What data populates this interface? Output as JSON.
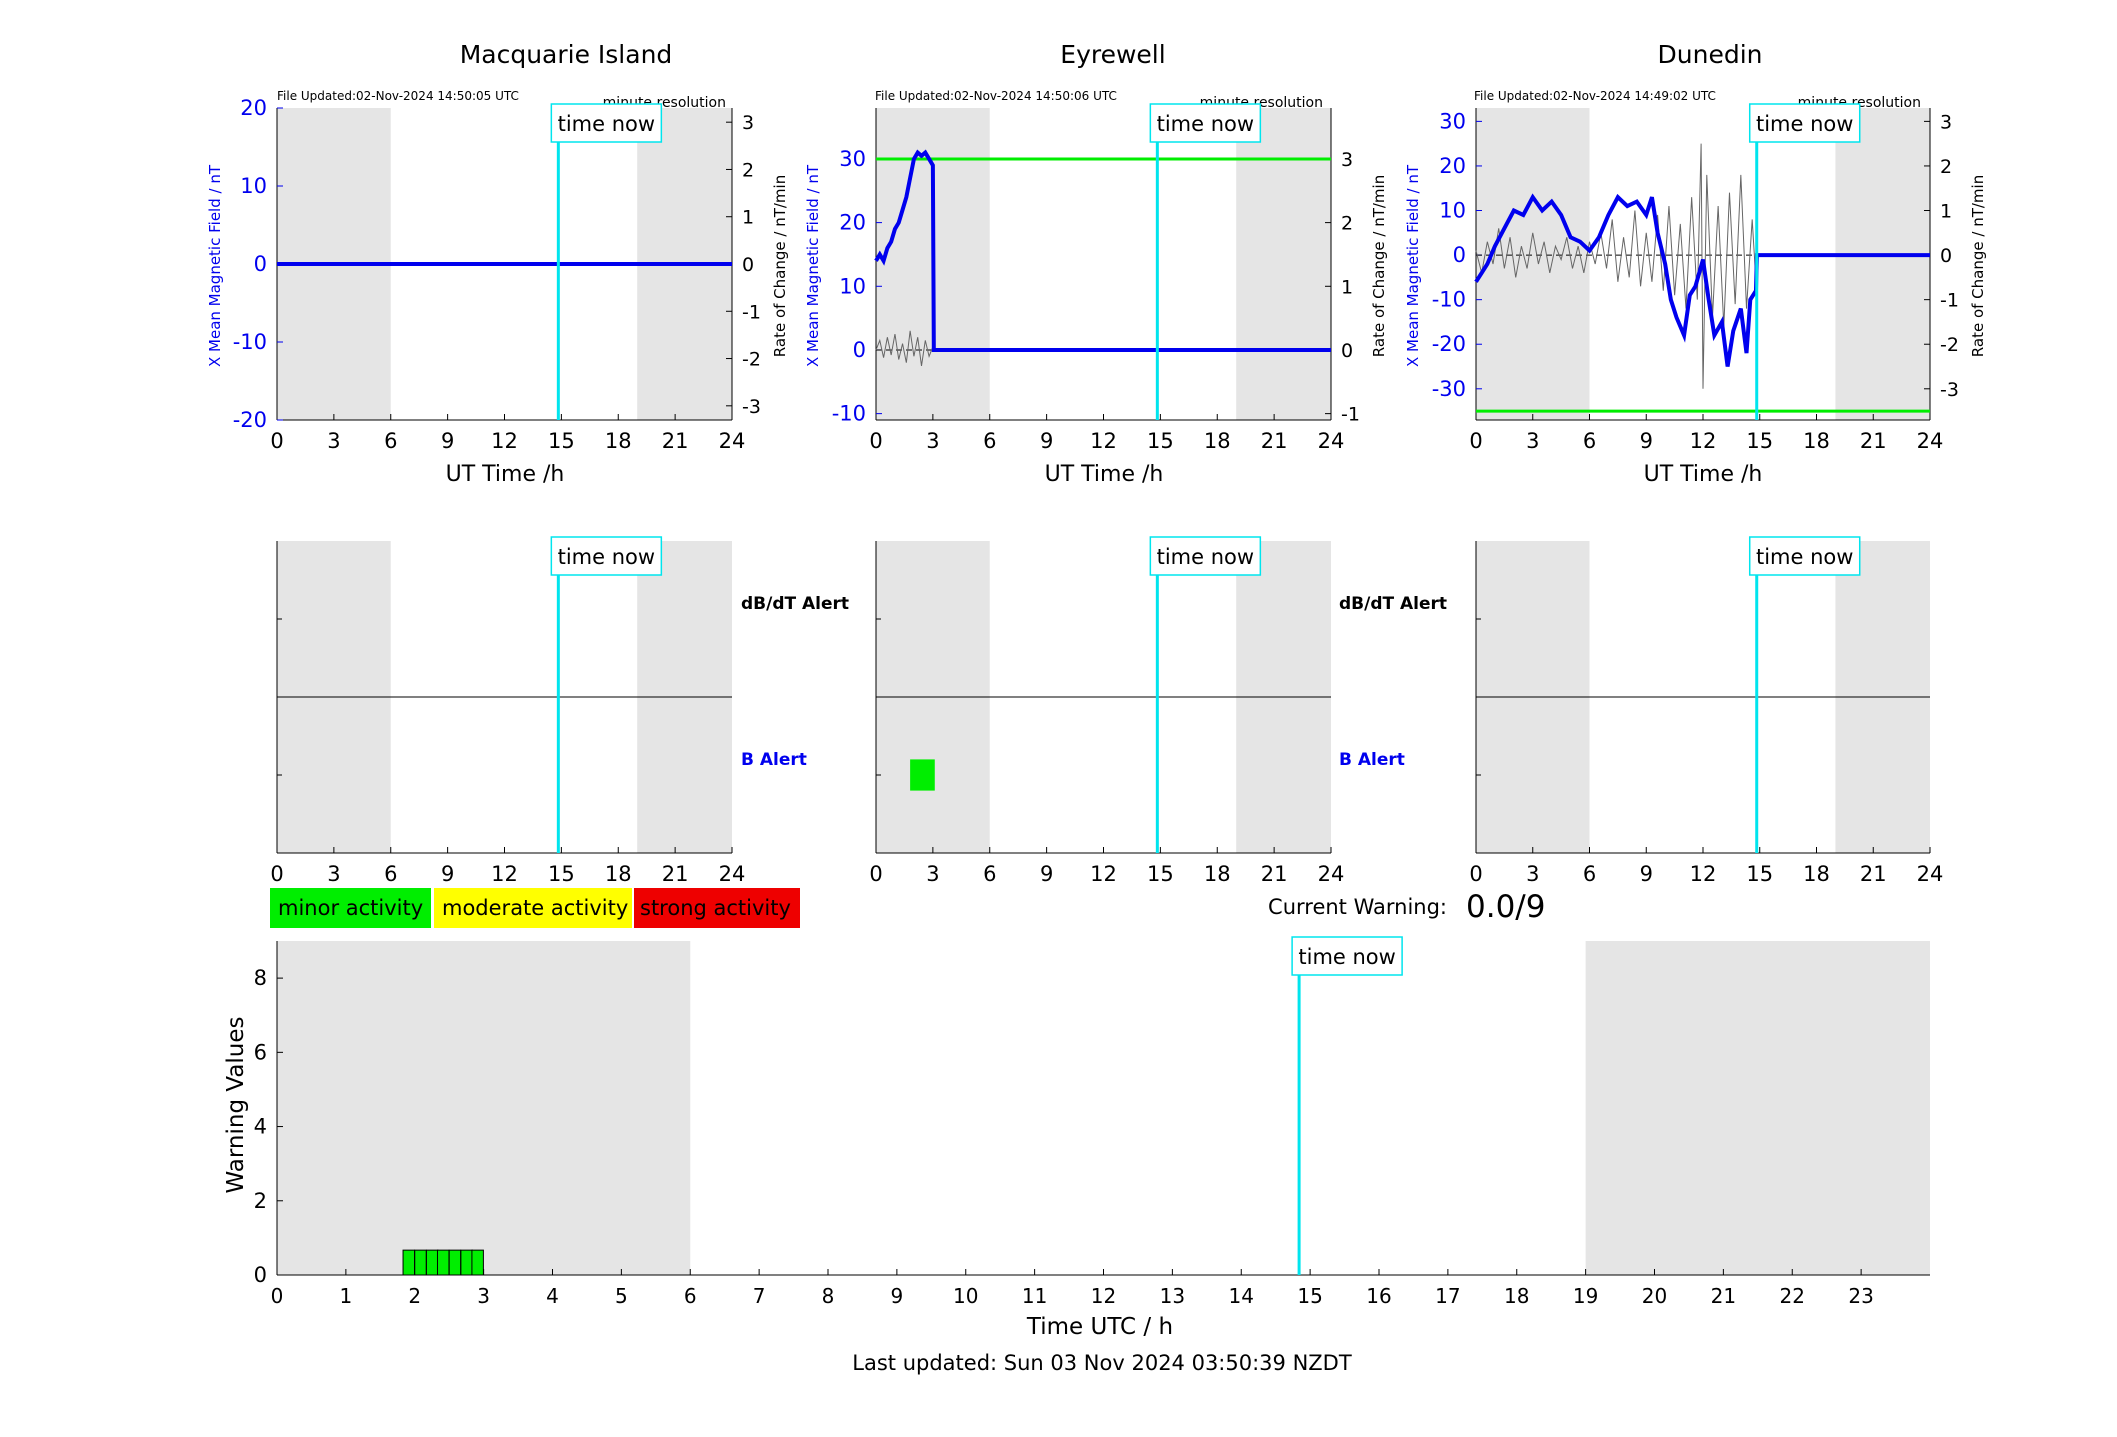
{
  "colors": {
    "field": "#0000ee",
    "rate": "#000000",
    "threshold": "#00ee00",
    "time_now": "#00e5ee",
    "night": "#e5e5e5",
    "minor": "#00ee00",
    "moderate": "#ffff00",
    "strong": "#ee0000"
  },
  "time_now_label": "time now",
  "chart_data": [
    {
      "type": "line",
      "station": "Macquarie Island",
      "updated": "File Updated:02-Nov-2024 14:50:05 UTC",
      "resolution": "minute resolution",
      "xlabel": "UT Time /h",
      "ylabel": "X Mean Magnetic Field / nT",
      "ylabel_right": "Rate of Change / nT/min",
      "xlim": [
        0,
        24
      ],
      "xticks": [
        0,
        3,
        6,
        9,
        12,
        15,
        18,
        21,
        24
      ],
      "ylim": [
        -20,
        20
      ],
      "yticks": [
        -20,
        -10,
        0,
        10,
        20
      ],
      "y2lim": [
        -3.3,
        3.3
      ],
      "y2ticks": [
        -3,
        -2,
        -1,
        0,
        1,
        2,
        3
      ],
      "night": [
        [
          0,
          6
        ],
        [
          19,
          24
        ]
      ],
      "time_now": 14.84,
      "threshold": null,
      "field": [
        [
          0,
          0
        ],
        [
          24,
          0
        ]
      ],
      "rate": []
    },
    {
      "type": "line",
      "station": "Eyrewell",
      "updated": "File Updated:02-Nov-2024 14:50:06 UTC",
      "resolution": "minute resolution",
      "xlabel": "UT Time /h",
      "ylabel": "X Mean Magnetic Field / nT",
      "ylabel_right": "Rate of Change / nT/min",
      "xlim": [
        0,
        24
      ],
      "xticks": [
        0,
        3,
        6,
        9,
        12,
        15,
        18,
        21,
        24
      ],
      "ylim": [
        -11,
        38
      ],
      "yticks": [
        -10,
        0,
        10,
        20,
        30
      ],
      "y2lim": [
        -1.1,
        3.8
      ],
      "y2ticks": [
        -1,
        0,
        1,
        2,
        3
      ],
      "night": [
        [
          0,
          6
        ],
        [
          19,
          24
        ]
      ],
      "time_now": 14.84,
      "threshold": 30,
      "field": [
        [
          0,
          14
        ],
        [
          0.2,
          15
        ],
        [
          0.4,
          14
        ],
        [
          0.6,
          16
        ],
        [
          0.8,
          17
        ],
        [
          1.0,
          19
        ],
        [
          1.2,
          20
        ],
        [
          1.4,
          22
        ],
        [
          1.6,
          24
        ],
        [
          1.8,
          27
        ],
        [
          2.0,
          30
        ],
        [
          2.2,
          31
        ],
        [
          2.4,
          30.5
        ],
        [
          2.6,
          31
        ],
        [
          2.8,
          30
        ],
        [
          3.0,
          29
        ],
        [
          3.05,
          0
        ],
        [
          24,
          0
        ]
      ],
      "rate": [
        [
          0,
          0.0
        ],
        [
          0.2,
          0.15
        ],
        [
          0.4,
          -0.12
        ],
        [
          0.6,
          0.2
        ],
        [
          0.8,
          -0.08
        ],
        [
          1.0,
          0.25
        ],
        [
          1.2,
          -0.15
        ],
        [
          1.4,
          0.1
        ],
        [
          1.6,
          -0.2
        ],
        [
          1.8,
          0.3
        ],
        [
          2.0,
          -0.1
        ],
        [
          2.2,
          0.2
        ],
        [
          2.4,
          -0.25
        ],
        [
          2.6,
          0.15
        ],
        [
          2.8,
          -0.1
        ],
        [
          3.0,
          0.05
        ]
      ]
    },
    {
      "type": "line",
      "station": "Dunedin",
      "updated": "File Updated:02-Nov-2024 14:49:02 UTC",
      "resolution": "minute resolution",
      "xlabel": "UT Time /h",
      "ylabel": "X Mean Magnetic Field / nT",
      "ylabel_right": "Rate of Change / nT/min",
      "xlim": [
        0,
        24
      ],
      "xticks": [
        0,
        3,
        6,
        9,
        12,
        15,
        18,
        21,
        24
      ],
      "ylim": [
        -37,
        33
      ],
      "yticks": [
        -30,
        -20,
        -10,
        0,
        10,
        20,
        30
      ],
      "y2lim": [
        -3.7,
        3.3
      ],
      "y2ticks": [
        -3,
        -2,
        -1,
        0,
        1,
        2,
        3
      ],
      "night": [
        [
          0,
          6
        ],
        [
          19,
          24
        ]
      ],
      "time_now": 14.84,
      "threshold": -35,
      "field": [
        [
          0,
          -6
        ],
        [
          0.3,
          -4
        ],
        [
          0.6,
          -2
        ],
        [
          1,
          2
        ],
        [
          1.5,
          6
        ],
        [
          2,
          10
        ],
        [
          2.5,
          9
        ],
        [
          3,
          13
        ],
        [
          3.5,
          10
        ],
        [
          4,
          12
        ],
        [
          4.5,
          9
        ],
        [
          5,
          4
        ],
        [
          5.5,
          3
        ],
        [
          6,
          1
        ],
        [
          6.5,
          4
        ],
        [
          7,
          9
        ],
        [
          7.5,
          13
        ],
        [
          8,
          11
        ],
        [
          8.5,
          12
        ],
        [
          9,
          9
        ],
        [
          9.3,
          13
        ],
        [
          9.6,
          5
        ],
        [
          10,
          -2
        ],
        [
          10.3,
          -10
        ],
        [
          10.6,
          -14
        ],
        [
          11,
          -18
        ],
        [
          11.3,
          -9
        ],
        [
          11.6,
          -7
        ],
        [
          12,
          -1
        ],
        [
          12.3,
          -10
        ],
        [
          12.6,
          -18
        ],
        [
          13,
          -15
        ],
        [
          13.3,
          -25
        ],
        [
          13.6,
          -17
        ],
        [
          14,
          -12
        ],
        [
          14.3,
          -22
        ],
        [
          14.5,
          -10
        ],
        [
          14.8,
          -8
        ],
        [
          14.85,
          0
        ],
        [
          24,
          0
        ]
      ],
      "rate": [
        [
          0,
          0.1
        ],
        [
          0.3,
          -0.4
        ],
        [
          0.6,
          0.3
        ],
        [
          0.9,
          -0.2
        ],
        [
          1.2,
          0.6
        ],
        [
          1.5,
          -0.3
        ],
        [
          1.8,
          0.4
        ],
        [
          2.1,
          -0.5
        ],
        [
          2.4,
          0.2
        ],
        [
          2.7,
          -0.3
        ],
        [
          3,
          0.5
        ],
        [
          3.3,
          -0.2
        ],
        [
          3.6,
          0.3
        ],
        [
          3.9,
          -0.4
        ],
        [
          4.2,
          0.2
        ],
        [
          4.5,
          -0.1
        ],
        [
          4.8,
          0.4
        ],
        [
          5.1,
          -0.3
        ],
        [
          5.4,
          0.2
        ],
        [
          5.7,
          -0.4
        ],
        [
          6,
          0.3
        ],
        [
          6.3,
          -0.2
        ],
        [
          6.6,
          0.5
        ],
        [
          6.9,
          -0.3
        ],
        [
          7.2,
          0.8
        ],
        [
          7.5,
          -0.6
        ],
        [
          7.8,
          0.4
        ],
        [
          8.1,
          -0.5
        ],
        [
          8.4,
          1.0
        ],
        [
          8.7,
          -0.7
        ],
        [
          9,
          0.5
        ],
        [
          9.3,
          -0.6
        ],
        [
          9.6,
          0.9
        ],
        [
          9.9,
          -0.8
        ],
        [
          10.2,
          1.1
        ],
        [
          10.5,
          -0.9
        ],
        [
          10.8,
          0.7
        ],
        [
          11.1,
          -1.2
        ],
        [
          11.4,
          1.3
        ],
        [
          11.7,
          -1.0
        ],
        [
          11.9,
          2.5
        ],
        [
          12.0,
          -3.0
        ],
        [
          12.2,
          1.8
        ],
        [
          12.5,
          -1.4
        ],
        [
          12.8,
          1.1
        ],
        [
          13.1,
          -1.6
        ],
        [
          13.4,
          1.4
        ],
        [
          13.7,
          -1.1
        ],
        [
          14.0,
          1.8
        ],
        [
          14.3,
          -1.2
        ],
        [
          14.6,
          0.8
        ],
        [
          14.8,
          -0.6
        ]
      ]
    },
    {
      "type": "alert_strip",
      "station": "Macquarie Island",
      "xlim": [
        0,
        24
      ],
      "xticks": [
        0,
        3,
        6,
        9,
        12,
        15,
        18,
        21,
        24
      ],
      "night": [
        [
          0,
          6
        ],
        [
          19,
          24
        ]
      ],
      "time_now": 14.84,
      "row_labels": [
        "dB/dT Alert",
        "B Alert"
      ],
      "alerts": []
    },
    {
      "type": "alert_strip",
      "station": "Eyrewell",
      "xlim": [
        0,
        24
      ],
      "xticks": [
        0,
        3,
        6,
        9,
        12,
        15,
        18,
        21,
        24
      ],
      "night": [
        [
          0,
          6
        ],
        [
          19,
          24
        ]
      ],
      "time_now": 14.84,
      "row_labels": [
        "dB/dT Alert",
        "B Alert"
      ],
      "alerts": [
        {
          "row": "B Alert",
          "start": 1.8,
          "end": 3.1,
          "level": "minor"
        }
      ]
    },
    {
      "type": "alert_strip",
      "station": "Dunedin",
      "xlim": [
        0,
        24
      ],
      "xticks": [
        0,
        3,
        6,
        9,
        12,
        15,
        18,
        21,
        24
      ],
      "night": [
        [
          0,
          6
        ],
        [
          19,
          24
        ]
      ],
      "time_now": 14.84,
      "row_labels": [],
      "alerts": []
    },
    {
      "type": "bar",
      "station": "",
      "xlabel": "Time UTC / h",
      "ylabel": "Warning Values",
      "xlim": [
        0,
        24
      ],
      "xticks": [
        0,
        1,
        2,
        3,
        4,
        5,
        6,
        7,
        8,
        9,
        10,
        11,
        12,
        13,
        14,
        15,
        16,
        17,
        18,
        19,
        20,
        21,
        22,
        23
      ],
      "ylim": [
        0,
        9
      ],
      "yticks": [
        0,
        2,
        4,
        6,
        8
      ],
      "night": [
        [
          0,
          6
        ],
        [
          19,
          24
        ]
      ],
      "time_now": 14.84,
      "bars": [
        [
          1.83,
          0.67,
          "minor"
        ],
        [
          2.0,
          0.67,
          "minor"
        ],
        [
          2.17,
          0.67,
          "minor"
        ],
        [
          2.33,
          0.67,
          "minor"
        ],
        [
          2.5,
          0.67,
          "minor"
        ],
        [
          2.67,
          0.67,
          "minor"
        ],
        [
          2.83,
          0.67,
          "minor"
        ]
      ],
      "bar_width": 0.1667
    }
  ],
  "legend": {
    "minor": "minor activity",
    "moderate": "moderate activity",
    "strong": "strong activity"
  },
  "warning": {
    "label": "Current Warning:",
    "value": "0.0/9"
  },
  "footer": {
    "last_updated": "Last updated: Sun 03 Nov 2024 03:50:39 NZDT"
  }
}
